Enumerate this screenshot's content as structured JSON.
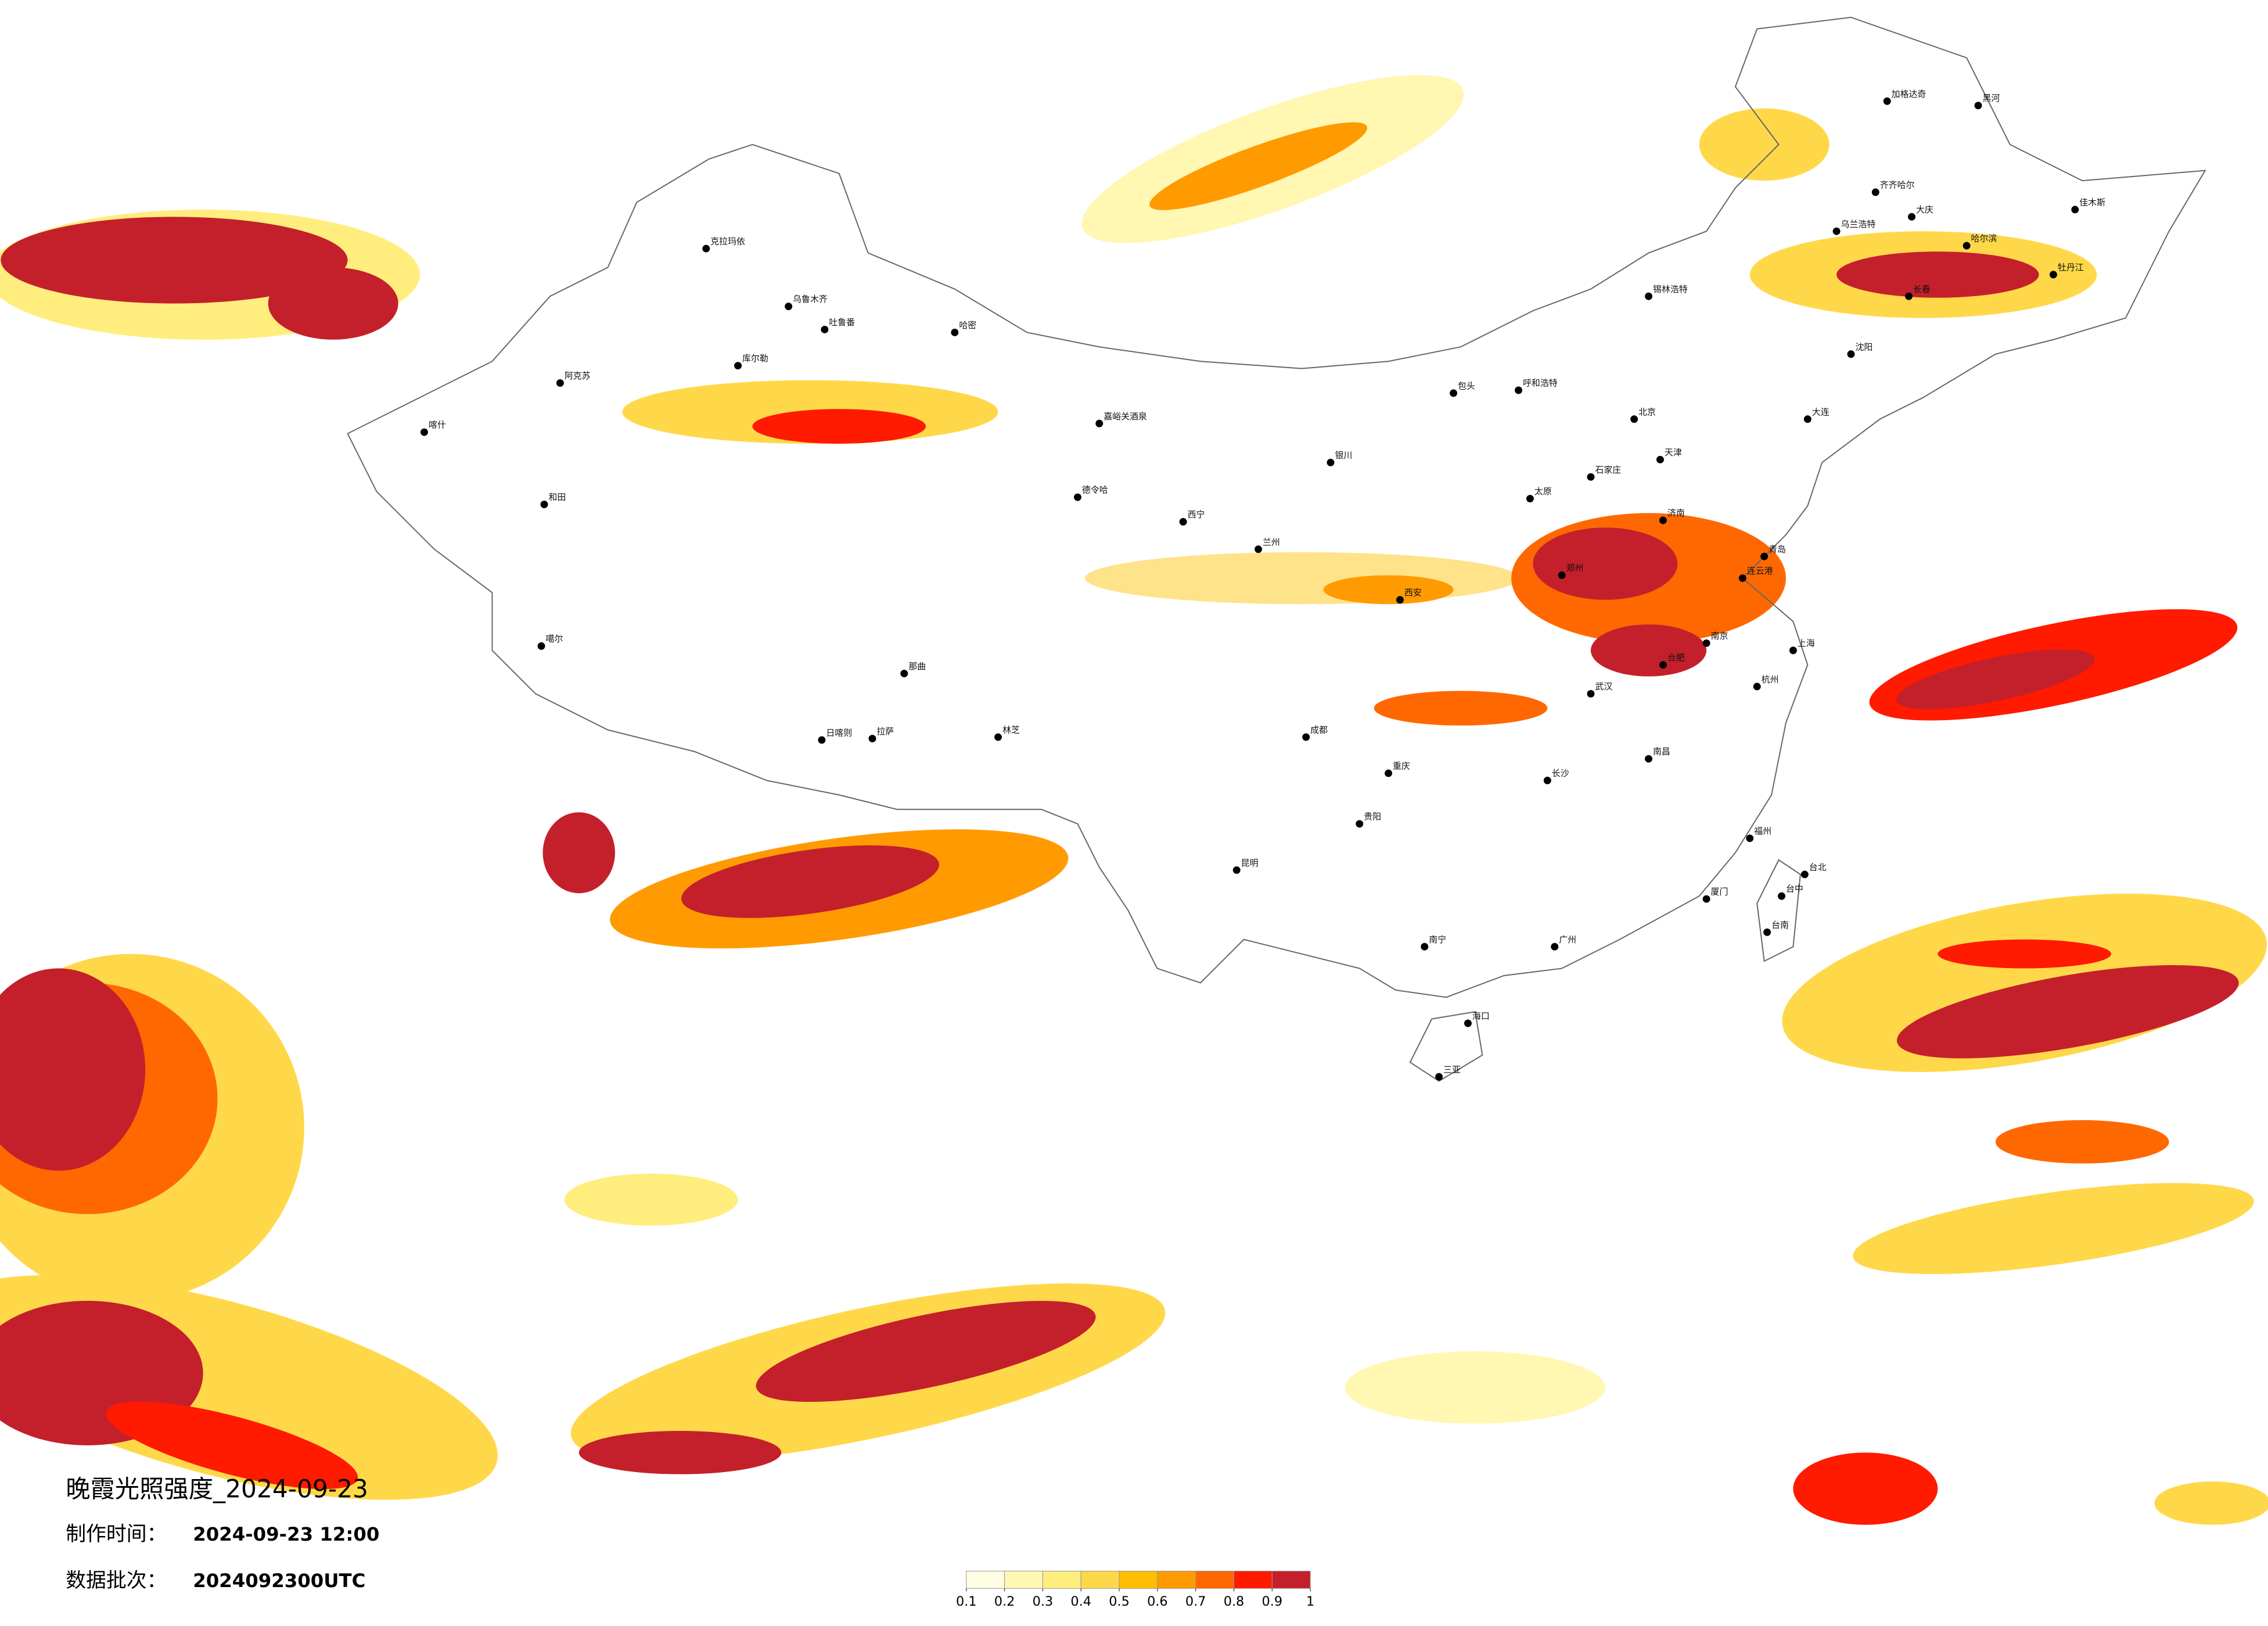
{
  "title": "晚霞光照强度_2024-09-23",
  "info": [
    {
      "label": "制作时间：",
      "value": "2024-09-23 12:00"
    },
    {
      "label": "数据批次：",
      "value": "2024092300UTC"
    }
  ],
  "legend": {
    "ticks": [
      0.1,
      0.2,
      0.3,
      0.4,
      0.5,
      0.6,
      0.7,
      0.8,
      0.9,
      1
    ],
    "colors": [
      "#fffde2",
      "#fff7b2",
      "#ffee7e",
      "#ffd84a",
      "#ffbe00",
      "#ff9b00",
      "#ff6800",
      "#ff1a00",
      "#c4202b"
    ]
  },
  "cities": [
    "克拉玛依",
    "乌鲁木齐",
    "吐鲁番",
    "哈密",
    "库尔勒",
    "阿克苏",
    "喀什",
    "和田",
    "嘉峪关酒泉",
    "德令哈",
    "那曲",
    "拉萨",
    "日喀则",
    "林芝",
    "噶尔",
    "西宁",
    "兰州",
    "银川",
    "呼和浩特",
    "包头",
    "北京",
    "天津",
    "石家庄",
    "太原",
    "济南",
    "郑州",
    "西安",
    "成都",
    "重庆",
    "贵阳",
    "昆明",
    "南宁",
    "广州",
    "长沙",
    "武汉",
    "南昌",
    "杭州",
    "上海",
    "南京",
    "合肥",
    "福州",
    "台北",
    "台中",
    "台南",
    "海口",
    "三亚",
    "哈尔滨",
    "长春",
    "沈阳",
    "大连",
    "加格达奇",
    "黑河",
    "齐齐哈尔",
    "大庆",
    "佳木斯",
    "牡丹江",
    "锡林浩特",
    "乌兰浩特",
    "青岛",
    "连云港",
    "厦门"
  ]
}
